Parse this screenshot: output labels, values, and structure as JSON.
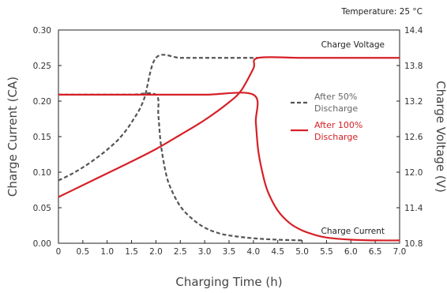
{
  "chart_data": {
    "type": "line",
    "temperature_note": "Temperature: 25 °C",
    "xlabel": "Charging Time (h)",
    "ylabel_left": "Charge Current (CA)",
    "ylabel_right": "Charge Voltage (V)",
    "xlim": [
      0,
      7
    ],
    "ylim_left": [
      0,
      0.3
    ],
    "ylim_right": [
      10.8,
      14.4
    ],
    "x_ticks": [
      "0",
      "0.5",
      "1.0",
      "1.5",
      "2.0",
      "2.5",
      "3.0",
      "3.5",
      "4.0",
      "4.5",
      "5.0",
      "5.5",
      "6.0",
      "6.5",
      "7.0"
    ],
    "y_left_ticks": [
      "0.00",
      "0.05",
      "0.10",
      "0.15",
      "0.20",
      "0.25",
      "0.30"
    ],
    "y_right_ticks": [
      "10.8",
      "11.4",
      "12.0",
      "12.6",
      "13.2",
      "13.8",
      "14.4"
    ],
    "grid": false,
    "legend_position": "right-middle",
    "annotations": {
      "charge_voltage": "Charge Voltage",
      "charge_current": "Charge Current"
    },
    "legend": [
      {
        "line1": "After 50%",
        "line2": "Discharge",
        "style": "dashed",
        "color": "#555555"
      },
      {
        "line1": "After 100%",
        "line2": "Discharge",
        "style": "solid",
        "color": "#d62027"
      }
    ],
    "series": [
      {
        "condition": "after_50_discharge",
        "quantity": "charge_voltage",
        "axis": "right",
        "style": "dashed",
        "color": "#555555",
        "x": [
          0,
          0.25,
          0.5,
          0.75,
          1.0,
          1.25,
          1.5,
          1.75,
          2.0,
          2.5,
          3.0,
          3.5,
          4.0,
          4.1
        ],
        "y": [
          11.86,
          11.96,
          12.08,
          12.22,
          12.38,
          12.57,
          12.84,
          13.22,
          13.93,
          13.93,
          13.93,
          13.93,
          13.93,
          13.93
        ]
      },
      {
        "condition": "after_50_discharge",
        "quantity": "charge_current",
        "axis": "left",
        "style": "dashed",
        "color": "#555555",
        "x": [
          0,
          0.5,
          1.0,
          1.5,
          2.0,
          2.05,
          2.1,
          2.2,
          2.3,
          2.5,
          2.75,
          3.0,
          3.25,
          3.5,
          4.0,
          4.5,
          5.0
        ],
        "y": [
          0.209,
          0.209,
          0.209,
          0.209,
          0.209,
          0.18,
          0.14,
          0.1,
          0.078,
          0.052,
          0.034,
          0.022,
          0.015,
          0.011,
          0.007,
          0.005,
          0.004
        ]
      },
      {
        "condition": "after_100_discharge",
        "quantity": "charge_voltage",
        "axis": "right",
        "style": "solid",
        "color": "#d62027",
        "x": [
          0,
          0.5,
          1.0,
          1.5,
          2.0,
          2.5,
          3.0,
          3.5,
          3.75,
          4.0,
          4.1,
          5.0,
          6.0,
          7.0
        ],
        "y": [
          11.58,
          11.78,
          11.98,
          12.18,
          12.39,
          12.63,
          12.88,
          13.18,
          13.38,
          13.75,
          13.93,
          13.93,
          13.93,
          13.93
        ]
      },
      {
        "condition": "after_100_discharge",
        "quantity": "charge_current",
        "axis": "left",
        "style": "solid",
        "color": "#d62027",
        "x": [
          0,
          1.0,
          2.0,
          3.0,
          4.0,
          4.05,
          4.1,
          4.2,
          4.3,
          4.5,
          4.75,
          5.0,
          5.25,
          5.5,
          6.0,
          6.5,
          7.0
        ],
        "y": [
          0.209,
          0.209,
          0.209,
          0.209,
          0.209,
          0.17,
          0.13,
          0.095,
          0.072,
          0.046,
          0.028,
          0.018,
          0.012,
          0.008,
          0.005,
          0.004,
          0.004
        ]
      }
    ]
  }
}
